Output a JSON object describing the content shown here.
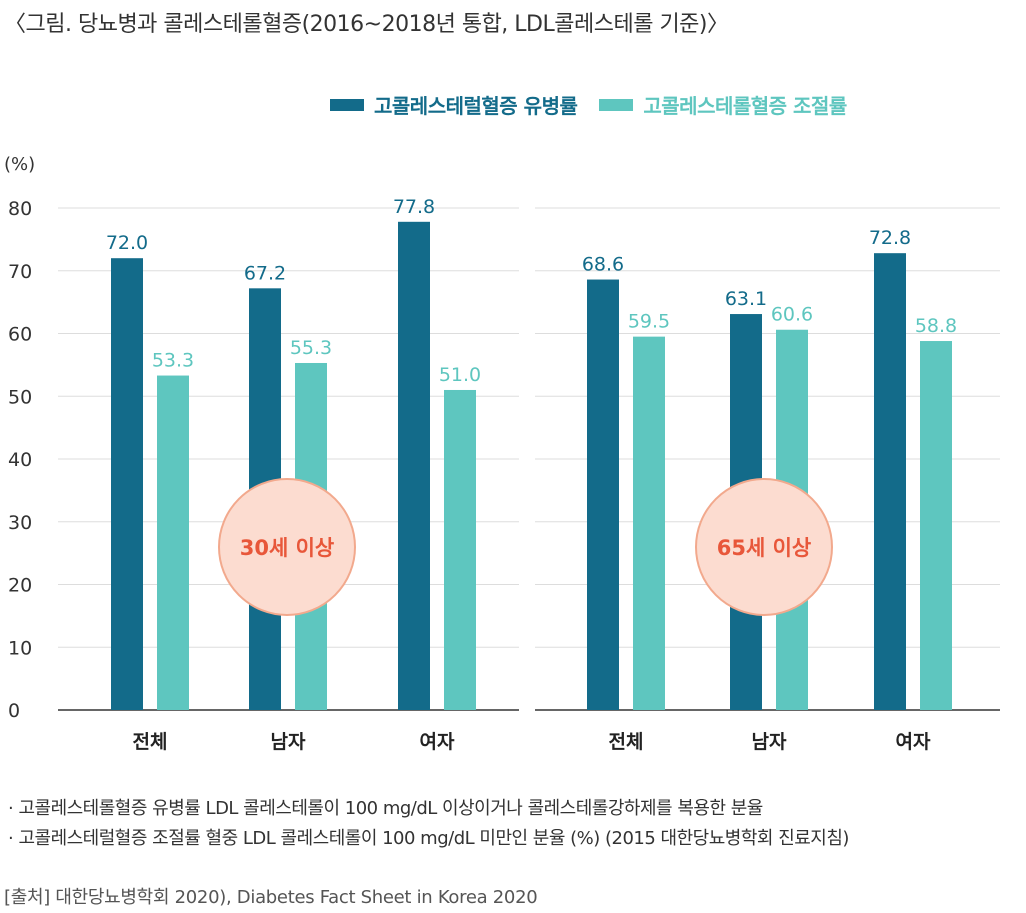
{
  "title": "〈그림. 당뇨병과 콜레스테롤혈증(2016~2018년 통합, LDL콜레스테롤 기준)〉",
  "colors": {
    "prevalence": "#136b8a",
    "control": "#5ec6bf",
    "grid": "#dddddd",
    "axis": "#666666",
    "badge_fill": "#fcdcd0",
    "badge_stroke": "#f2a98d",
    "badge_text": "#e8573a"
  },
  "chart_data": {
    "type": "bar",
    "ylabel": "(%)",
    "ylim": [
      0,
      80
    ],
    "yticks": [
      "0",
      "10",
      "20",
      "30",
      "40",
      "50",
      "60",
      "70",
      "80"
    ],
    "series_names": [
      "고콜레스테럴혈증 유병률",
      "고콜레스테롤혈증 조절률"
    ],
    "panels": [
      {
        "badge": "30세 이상",
        "categories": [
          "전체",
          "남자",
          "여자"
        ],
        "series": [
          {
            "name": "고콜레스테럴혈증 유병률",
            "values": [
              72.0,
              67.2,
              77.8
            ],
            "labels": [
              "72.0",
              "67.2",
              "77.8"
            ]
          },
          {
            "name": "고콜레스테롤혈증 조절률",
            "values": [
              53.3,
              55.3,
              51.0
            ],
            "labels": [
              "53.3",
              "55.3",
              "51.0"
            ]
          }
        ]
      },
      {
        "badge": "65세 이상",
        "categories": [
          "전체",
          "남자",
          "여자"
        ],
        "series": [
          {
            "name": "고콜레스테럴혈증 유병률",
            "values": [
              68.6,
              63.1,
              72.8
            ],
            "labels": [
              "68.6",
              "63.1",
              "72.8"
            ]
          },
          {
            "name": "고콜레스테롤혈증 조절률",
            "values": [
              59.5,
              60.6,
              58.8
            ],
            "labels": [
              "59.5",
              "60.6",
              "58.8"
            ]
          }
        ]
      }
    ]
  },
  "notes": [
    "· 고콜레스테롤혈증 유병률 LDL 콜레스테롤이 100 mg/dL 이상이거나 콜레스테롤강하제를 복용한 분율",
    "· 고콜레스테럴혈증 조절률 혈중 LDL 콜레스테롤이 100 mg/dL 미만인 분율 (%) (2015 대한당뇨병학회 진료지침)"
  ],
  "source": "[출처] 대한당뇨병학회 2020), Diabetes Fact Sheet in Korea 2020"
}
